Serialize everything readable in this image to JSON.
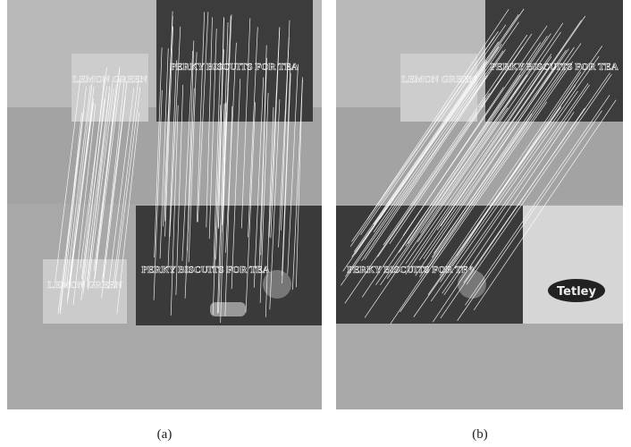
{
  "panels": [
    {
      "label": "(a)",
      "image_text": [
        "LEMON GREEN",
        "PERKY BISCUITS FOR TEA",
        "LEMON GREEN",
        "PERKY BISCUITS FOR TEA"
      ]
    },
    {
      "label": "(b)",
      "image_text": [
        "LEMON GREEN",
        "PERKY BISCUITS FOR TEA",
        "PERKY BISCUITS FOR TEA",
        "Tetley"
      ]
    }
  ]
}
